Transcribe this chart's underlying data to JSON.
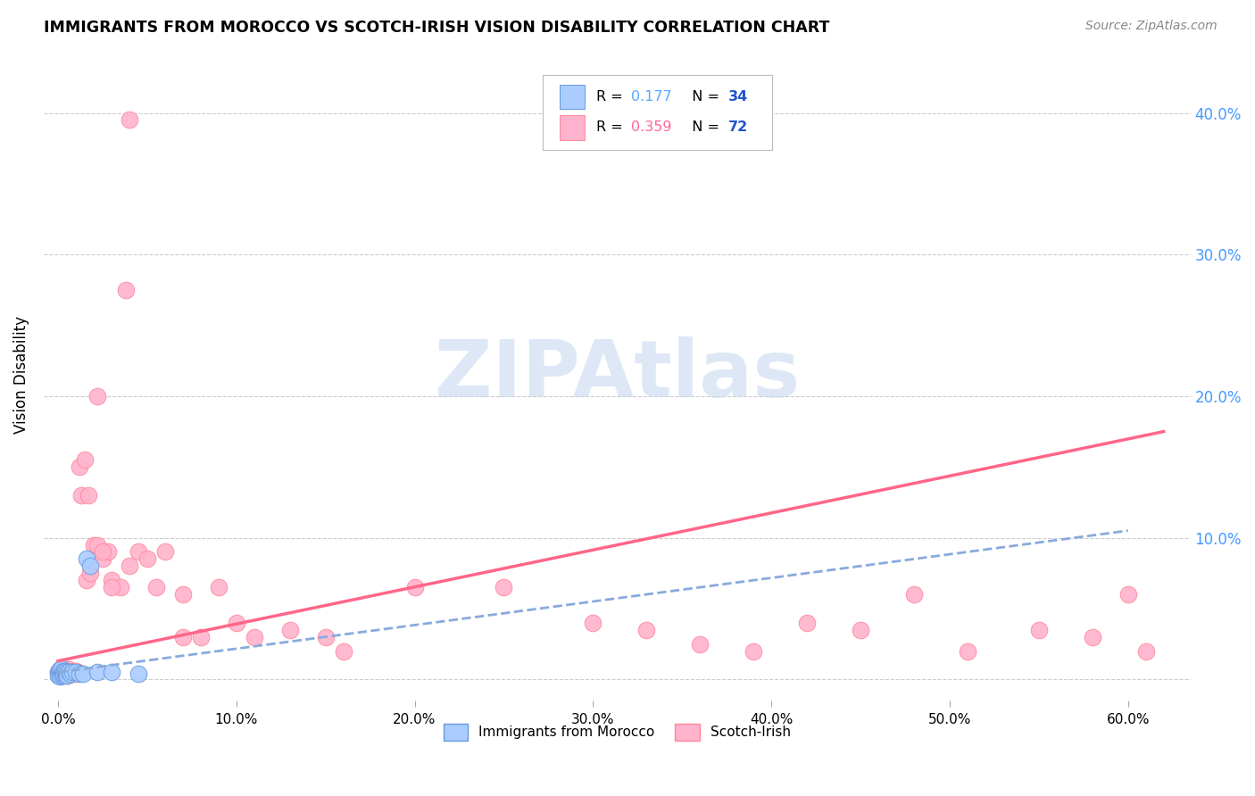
{
  "title": "IMMIGRANTS FROM MOROCCO VS SCOTCH-IRISH VISION DISABILITY CORRELATION CHART",
  "source": "Source: ZipAtlas.com",
  "ylabel": "Vision Disability",
  "yticks": [
    0.0,
    0.1,
    0.2,
    0.3,
    0.4
  ],
  "ytick_labels": [
    "",
    "10.0%",
    "20.0%",
    "30.0%",
    "40.0%"
  ],
  "xticks": [
    0.0,
    0.1,
    0.2,
    0.3,
    0.4,
    0.5,
    0.6
  ],
  "xlim": [
    -0.008,
    0.635
  ],
  "ylim": [
    -0.015,
    0.445
  ],
  "morocco_r": "0.177",
  "morocco_n": "34",
  "scotch_r": "0.359",
  "scotch_n": "72",
  "scatter_morocco_x": [
    0.0,
    0.0,
    0.001,
    0.001,
    0.001,
    0.001,
    0.001,
    0.002,
    0.002,
    0.002,
    0.002,
    0.002,
    0.003,
    0.003,
    0.003,
    0.003,
    0.003,
    0.004,
    0.004,
    0.004,
    0.005,
    0.005,
    0.005,
    0.006,
    0.007,
    0.008,
    0.01,
    0.012,
    0.014,
    0.016,
    0.018,
    0.022,
    0.03,
    0.045
  ],
  "scatter_morocco_y": [
    0.005,
    0.003,
    0.004,
    0.006,
    0.003,
    0.007,
    0.002,
    0.005,
    0.004,
    0.006,
    0.003,
    0.008,
    0.004,
    0.005,
    0.003,
    0.006,
    0.004,
    0.005,
    0.004,
    0.006,
    0.004,
    0.005,
    0.003,
    0.005,
    0.004,
    0.005,
    0.005,
    0.004,
    0.004,
    0.085,
    0.08,
    0.005,
    0.005,
    0.004
  ],
  "scatter_scotch_x": [
    0.0,
    0.001,
    0.001,
    0.001,
    0.002,
    0.002,
    0.002,
    0.002,
    0.003,
    0.003,
    0.003,
    0.004,
    0.004,
    0.004,
    0.005,
    0.005,
    0.005,
    0.006,
    0.006,
    0.007,
    0.007,
    0.008,
    0.008,
    0.009,
    0.01,
    0.01,
    0.011,
    0.012,
    0.013,
    0.015,
    0.016,
    0.017,
    0.018,
    0.02,
    0.022,
    0.025,
    0.028,
    0.03,
    0.035,
    0.04,
    0.045,
    0.05,
    0.055,
    0.06,
    0.07,
    0.08,
    0.09,
    0.11,
    0.13,
    0.15,
    0.2,
    0.25,
    0.3,
    0.33,
    0.36,
    0.39,
    0.42,
    0.45,
    0.48,
    0.51,
    0.55,
    0.58,
    0.6,
    0.61,
    0.16,
    0.022,
    0.025,
    0.03,
    0.1,
    0.07,
    0.04,
    0.038
  ],
  "scatter_scotch_y": [
    0.005,
    0.004,
    0.006,
    0.003,
    0.005,
    0.004,
    0.007,
    0.003,
    0.005,
    0.004,
    0.006,
    0.005,
    0.004,
    0.007,
    0.004,
    0.006,
    0.003,
    0.005,
    0.007,
    0.005,
    0.004,
    0.006,
    0.004,
    0.005,
    0.004,
    0.006,
    0.005,
    0.15,
    0.13,
    0.155,
    0.07,
    0.13,
    0.075,
    0.095,
    0.2,
    0.085,
    0.09,
    0.07,
    0.065,
    0.08,
    0.09,
    0.085,
    0.065,
    0.09,
    0.06,
    0.03,
    0.065,
    0.03,
    0.035,
    0.03,
    0.065,
    0.065,
    0.04,
    0.035,
    0.025,
    0.02,
    0.04,
    0.035,
    0.06,
    0.02,
    0.035,
    0.03,
    0.06,
    0.02,
    0.02,
    0.095,
    0.09,
    0.065,
    0.04,
    0.03,
    0.395,
    0.275
  ],
  "morocco_dot_color": "#aaccff",
  "scotch_dot_color": "#ffb3cc",
  "morocco_edge_color": "#6699dd",
  "scotch_edge_color": "#ff8899",
  "trend_morocco_color": "#88aadd",
  "trend_scotch_color": "#ff6688",
  "watermark_color": "#c8d8f0",
  "watermark_text": "ZIPAtlas",
  "background_color": "#ffffff",
  "grid_color": "#cccccc"
}
